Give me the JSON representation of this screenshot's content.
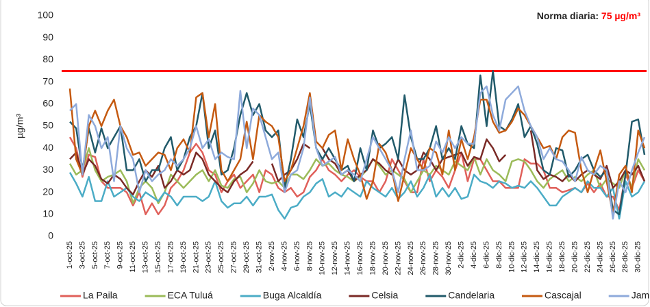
{
  "chart_data": {
    "type": "line",
    "y_label": "µg/m³",
    "threshold": {
      "label": "Norma diaria:",
      "value": 75,
      "value_label": "75 µg/m³",
      "color": "#ff0000"
    },
    "ylim": [
      0,
      100
    ],
    "yticks": [
      0,
      10,
      20,
      30,
      40,
      50,
      60,
      70,
      80,
      90,
      100
    ],
    "grid": false,
    "legend": "bottom",
    "categories": [
      "1-oct-25",
      null,
      "3-oct-25",
      null,
      "5-oct-25",
      null,
      "7-oct-25",
      null,
      "9-oct-25",
      null,
      "11-oct-25",
      null,
      "13-oct-25",
      null,
      "15-oct-25",
      null,
      "17-oct-25",
      null,
      "19-oct-25",
      null,
      "21-oct-25",
      null,
      "23-oct-25",
      null,
      "25-oct-25",
      null,
      "27-oct-25",
      null,
      "29-oct-25",
      null,
      "31-oct-25",
      null,
      "2-nov-25",
      null,
      "4-nov-25",
      null,
      "6-nov-25",
      null,
      "8-nov-25",
      null,
      "10-nov-25",
      null,
      "12-nov-25",
      null,
      "14-nov-25",
      null,
      "16-nov-25",
      null,
      "18-nov-25",
      null,
      "20-nov-25",
      null,
      "22-nov-25",
      null,
      "24-nov-25",
      null,
      "26-nov-25",
      null,
      "28-nov-25",
      null,
      "30-nov-25",
      null,
      "2-dic-25",
      null,
      "4-dic-25",
      null,
      "6-dic-25",
      null,
      "8-dic-25",
      null,
      "10-dic-25",
      null,
      "12-dic-25",
      null,
      "14-dic-25",
      null,
      "16-dic-25",
      null,
      "18-dic-25",
      null,
      "20-dic-25",
      null,
      "22-dic-25",
      null,
      "24-dic-25",
      null,
      "26-dic-25",
      null,
      "28-dic-25",
      null,
      "30-dic-25",
      null
    ],
    "series": [
      {
        "name": "La Paila",
        "color": "#e0605a",
        "values": [
          45,
          40,
          27,
          37,
          36,
          25,
          22,
          22,
          22,
          20,
          14,
          20,
          10,
          15,
          10,
          14,
          22,
          25,
          30,
          38,
          42,
          38,
          30,
          28,
          20,
          25,
          28,
          22,
          25,
          28,
          20,
          30,
          28,
          22,
          20,
          22,
          18,
          20,
          27,
          30,
          35,
          30,
          28,
          25,
          28,
          30,
          27,
          25,
          25,
          20,
          25,
          35,
          30,
          25,
          20,
          20,
          35,
          25,
          30,
          27,
          22,
          30,
          38,
          25,
          35,
          35,
          30,
          25,
          25,
          22,
          22,
          22,
          35,
          33,
          33,
          30,
          22,
          22,
          20,
          21,
          22,
          20,
          24,
          20,
          24,
          18,
          18,
          12,
          28,
          22,
          30,
          25
        ]
      },
      {
        "name": "ECA Tuluá",
        "color": "#9bbb59",
        "values": [
          33,
          28,
          30,
          40,
          30,
          25,
          27,
          28,
          30,
          25,
          15,
          22,
          25,
          22,
          15,
          20,
          28,
          25,
          22,
          25,
          28,
          30,
          25,
          30,
          23,
          22,
          26,
          27,
          20,
          24,
          30,
          25,
          24,
          25,
          22,
          28,
          28,
          26,
          30,
          35,
          32,
          33,
          30,
          28,
          27,
          25,
          27,
          30,
          35,
          32,
          28,
          30,
          28,
          26,
          20,
          25,
          30,
          28,
          32,
          30,
          28,
          34,
          32,
          30,
          36,
          28,
          35,
          30,
          28,
          25,
          34,
          35,
          34,
          30,
          25,
          22,
          26,
          28,
          30,
          25,
          27,
          25,
          28,
          30,
          22,
          26,
          24,
          22,
          30,
          22,
          35,
          30
        ]
      },
      {
        "name": "Buga Alcaldía",
        "color": "#4bacc6",
        "values": [
          29,
          24,
          18,
          27,
          16,
          16,
          25,
          18,
          20,
          22,
          18,
          16,
          20,
          18,
          16,
          20,
          18,
          14,
          18,
          18,
          18,
          16,
          18,
          25,
          16,
          13,
          15,
          15,
          18,
          14,
          18,
          18,
          19,
          12,
          8,
          13,
          14,
          18,
          20,
          24,
          26,
          18,
          20,
          18,
          22,
          20,
          18,
          25,
          22,
          20,
          18,
          22,
          17,
          20,
          25,
          18,
          22,
          28,
          18,
          22,
          18,
          22,
          17,
          18,
          28,
          25,
          24,
          22,
          25,
          24,
          22,
          23,
          22,
          25,
          22,
          18,
          14,
          14,
          18,
          20,
          22,
          20,
          25,
          22,
          22,
          18,
          22,
          8,
          25,
          18,
          20,
          25
        ]
      },
      {
        "name": "Celsia",
        "color": "#7a2a26",
        "values": [
          35,
          38,
          28,
          35,
          32,
          26,
          24,
          28,
          26,
          22,
          19,
          25,
          30,
          27,
          32,
          22,
          25,
          30,
          28,
          30,
          38,
          35,
          28,
          25,
          22,
          20,
          25,
          28,
          30,
          34,
          null,
          null,
          33,
          25,
          28,
          30,
          35,
          42,
          40,
          null,
          40,
          35,
          33,
          28,
          30,
          25,
          28,
          30,
          35,
          33,
          30,
          28,
          35,
          30,
          28,
          30,
          38,
          35,
          30,
          35,
          36,
          37,
          38,
          32,
          36,
          35,
          44,
          40,
          34,
          37,
          null,
          null,
          null,
          48,
          30,
          26,
          28,
          27,
          25,
          28,
          25,
          28,
          30,
          28,
          26,
          32,
          22,
          25,
          30,
          28,
          32,
          25
        ]
      },
      {
        "name": "Candelaria",
        "color": "#215a6a",
        "values": [
          52,
          49,
          30,
          49,
          38,
          49,
          40,
          45,
          50,
          30,
          30,
          35,
          25,
          30,
          30,
          40,
          45,
          30,
          35,
          45,
          50,
          65,
          40,
          48,
          28,
          30,
          40,
          55,
          65,
          55,
          60,
          48,
          45,
          48,
          22,
          35,
          53,
          45,
          60,
          40,
          35,
          40,
          35,
          30,
          32,
          25,
          40,
          30,
          48,
          40,
          42,
          45,
          35,
          64,
          45,
          35,
          35,
          40,
          50,
          35,
          40,
          35,
          50,
          42,
          40,
          73,
          50,
          75,
          50,
          48,
          53,
          60,
          45,
          50,
          42,
          30,
          28,
          40,
          39,
          27,
          30,
          35,
          37,
          30,
          27,
          30,
          12,
          10,
          28,
          52,
          53,
          37
        ]
      },
      {
        "name": "Cascajal",
        "color": "#c55a11",
        "values": [
          67,
          35,
          28,
          50,
          57,
          50,
          57,
          62,
          50,
          45,
          37,
          38,
          32,
          35,
          38,
          37,
          30,
          40,
          44,
          38,
          63,
          65,
          45,
          60,
          30,
          25,
          30,
          35,
          52,
          35,
          55,
          52,
          50,
          45,
          25,
          30,
          40,
          50,
          65,
          43,
          40,
          46,
          48,
          30,
          44,
          35,
          28,
          17,
          25,
          42,
          38,
          30,
          16,
          28,
          40,
          35,
          30,
          40,
          38,
          28,
          48,
          30,
          44,
          35,
          45,
          62,
          62,
          52,
          47,
          48,
          52,
          58,
          55,
          50,
          45,
          40,
          41,
          35,
          45,
          48,
          47,
          30,
          20,
          30,
          39,
          25,
          10,
          28,
          32,
          20,
          48,
          40
        ]
      },
      {
        "name": "Jamundí",
        "color": "#8eaadb",
        "values": [
          57,
          60,
          28,
          55,
          50,
          40,
          45,
          25,
          50,
          40,
          35,
          20,
          30,
          25,
          28,
          30,
          35,
          32,
          35,
          40,
          50,
          40,
          44,
          35,
          38,
          36,
          35,
          66,
          40,
          58,
          55,
          45,
          35,
          38,
          20,
          28,
          30,
          40,
          63,
          40,
          32,
          34,
          36,
          28,
          30,
          28,
          25,
          35,
          45,
          40,
          35,
          30,
          20,
          35,
          48,
          30,
          30,
          32,
          43,
          38,
          45,
          40,
          45,
          42,
          42,
          65,
          68,
          55,
          48,
          62,
          65,
          68,
          57,
          50,
          45,
          35,
          40,
          35,
          34,
          30,
          25,
          36,
          30,
          28,
          32,
          30,
          8,
          25,
          20,
          30,
          38,
          45
        ]
      }
    ]
  }
}
